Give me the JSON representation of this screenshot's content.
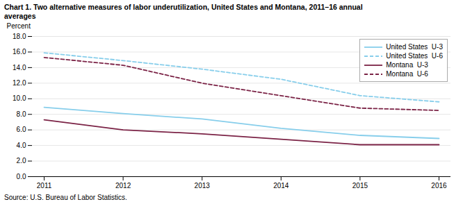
{
  "chart_data": {
    "type": "line",
    "title": "Chart 1. Two alternative measures of labor underutilization, United States and Montana, 2011–16  annual\naverages",
    "ylabel": "Percent",
    "annotations": [
      "Source: U.S. Bureau of Labor Statistics."
    ],
    "x": [
      2011,
      2012,
      2013,
      2014,
      2015,
      2016
    ],
    "xlim": [
      2010.85,
      2016.15
    ],
    "xticks": [
      2011,
      2012,
      2013,
      2014,
      2015,
      2016
    ],
    "ylim": [
      0.0,
      18.0
    ],
    "yticks": [
      {
        "value": 0.0,
        "label": "0.0"
      },
      {
        "value": 2.0,
        "label": "2.0"
      },
      {
        "value": 4.0,
        "label": "4.0"
      },
      {
        "value": 6.0,
        "label": "6.0"
      },
      {
        "value": 8.0,
        "label": "8.0"
      },
      {
        "value": 10.0,
        "label": "10.0"
      },
      {
        "value": 12.0,
        "label": "12.0"
      },
      {
        "value": 14.0,
        "label": "14.0"
      },
      {
        "value": 16.0,
        "label": "16.0"
      },
      {
        "value": 18.0,
        "label": "18.0"
      }
    ],
    "grid": "y",
    "legend": "upper right",
    "series": [
      {
        "name": "United States  U-3",
        "color": "#87CEEB",
        "line_style": "solid",
        "values": [
          8.9,
          8.1,
          7.4,
          6.2,
          5.3,
          4.9
        ]
      },
      {
        "name": "United States  U-6",
        "color": "#87CEEB",
        "line_style": "dashed",
        "values": [
          15.9,
          14.9,
          13.8,
          12.5,
          10.4,
          9.6
        ]
      },
      {
        "name": "Montana  U-3",
        "color": "#7B2346",
        "line_style": "solid",
        "values": [
          7.3,
          6.0,
          5.5,
          4.8,
          4.1,
          4.1
        ]
      },
      {
        "name": "Montana  U-6",
        "color": "#7B2346",
        "line_style": "dashed",
        "values": [
          15.3,
          14.3,
          12.0,
          10.4,
          8.8,
          8.5
        ]
      }
    ]
  }
}
